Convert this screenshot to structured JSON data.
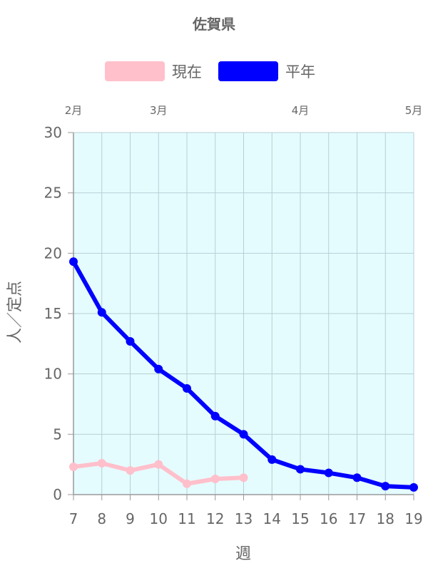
{
  "chart_data": {
    "type": "line",
    "title": "佐賀県",
    "xlabel": "週",
    "ylabel": "人／定点",
    "x": [
      7,
      8,
      9,
      10,
      11,
      12,
      13,
      14,
      15,
      16,
      17,
      18,
      19
    ],
    "xlim": [
      7,
      19
    ],
    "ylim": [
      0,
      30
    ],
    "yticks": [
      0,
      5,
      10,
      15,
      20,
      25,
      30
    ],
    "grid": true,
    "legend_position": "top",
    "month_labels": [
      {
        "label": "2月",
        "x": 7
      },
      {
        "label": "3月",
        "x": 10
      },
      {
        "label": "4月",
        "x": 15
      },
      {
        "label": "5月",
        "x": 19
      }
    ],
    "series": [
      {
        "name": "現在",
        "color": "#ffc0cb",
        "values": [
          2.3,
          2.6,
          2.0,
          2.5,
          0.9,
          1.3,
          1.4,
          null,
          null,
          null,
          null,
          null,
          null
        ]
      },
      {
        "name": "平年",
        "color": "#0000ff",
        "values": [
          19.3,
          15.1,
          12.7,
          10.4,
          8.8,
          6.5,
          5.0,
          2.9,
          2.1,
          1.8,
          1.4,
          0.7,
          0.6
        ]
      }
    ],
    "colors": {
      "plot_background": "#e5fcff",
      "grid": "#b7cfd2",
      "axis": "#999999",
      "text": "#666666"
    }
  }
}
